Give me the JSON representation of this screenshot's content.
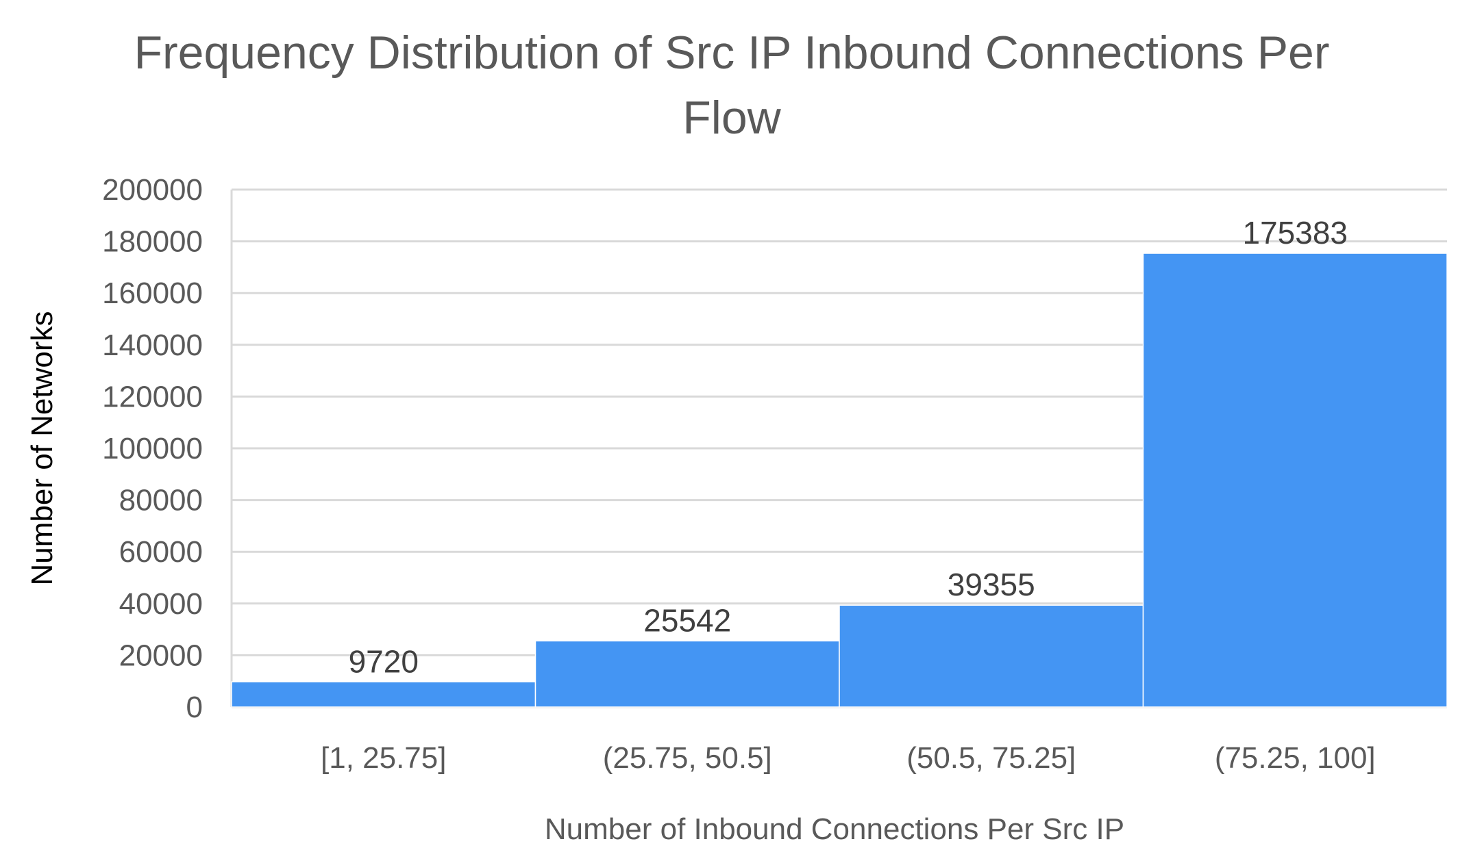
{
  "chart_data": {
    "type": "bar",
    "title": [
      "Frequency Distribution of Src IP Inbound Connections Per",
      "Flow"
    ],
    "xlabel": "Number of Inbound Connections Per Src IP",
    "ylabel": "Number of Networks",
    "categories": [
      "[1, 25.75]",
      "(25.75, 50.5]",
      "(50.5, 75.25]",
      "(75.25, 100]"
    ],
    "values": [
      9720,
      25542,
      39355,
      175383
    ],
    "ylim": [
      0,
      200000
    ],
    "yticks": [
      0,
      20000,
      40000,
      60000,
      80000,
      100000,
      120000,
      140000,
      160000,
      180000,
      200000
    ],
    "grid": true,
    "legend": "none",
    "data_labels": true,
    "colors": {
      "bar": "#4495F3",
      "grid": "#D9D9D9",
      "text": "#595959",
      "ylabel": "#000000"
    }
  }
}
